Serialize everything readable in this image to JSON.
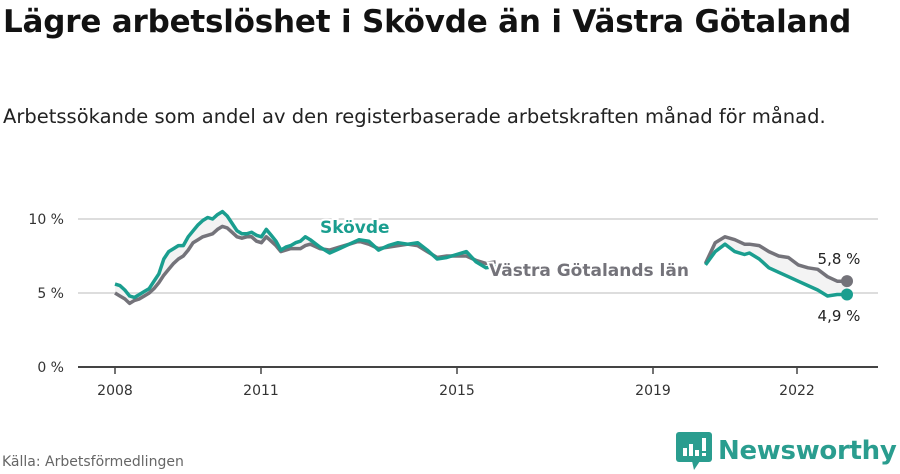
{
  "header": {
    "title": "Lägre arbetslöshet i Skövde än i Västra Götaland",
    "subtitle": "Arbetssökande som andel av den registerbaserade arbetskraften månad för månad."
  },
  "footer": {
    "source": "Källa: Arbetsförmedlingen",
    "brand": "Newsworthy"
  },
  "colors": {
    "skovde": "#1a9e8f",
    "vastra_gotaland": "#74737a",
    "grid": "#dddddd",
    "axis": "#444444"
  },
  "chart_data": {
    "type": "line",
    "title": "Lägre arbetslöshet i Skövde än i Västra Götaland",
    "subtitle": "Arbetssökande som andel av den registerbaserade arbetskraften månad för månad.",
    "xlabel": "",
    "ylabel": "",
    "ylim": [
      0,
      10.5
    ],
    "y_ticks": [
      "0 %",
      "5 %",
      "10 %"
    ],
    "x_ticks": [
      "2008",
      "2011",
      "2015",
      "2019",
      "2022"
    ],
    "grid": true,
    "legend": "inline labels",
    "series": [
      {
        "name": "Skövde",
        "color": "#1a9e8f",
        "end_label": "4,9 %",
        "points": [
          [
            2008.0,
            5.6
          ],
          [
            2008.1,
            5.5
          ],
          [
            2008.2,
            5.2
          ],
          [
            2008.3,
            4.8
          ],
          [
            2008.4,
            4.7
          ],
          [
            2008.5,
            4.9
          ],
          [
            2008.6,
            5.1
          ],
          [
            2008.7,
            5.3
          ],
          [
            2008.8,
            5.8
          ],
          [
            2008.9,
            6.3
          ],
          [
            2009.0,
            7.3
          ],
          [
            2009.1,
            7.8
          ],
          [
            2009.2,
            8.0
          ],
          [
            2009.3,
            8.2
          ],
          [
            2009.4,
            8.2
          ],
          [
            2009.5,
            8.8
          ],
          [
            2009.6,
            9.2
          ],
          [
            2009.7,
            9.6
          ],
          [
            2009.8,
            9.9
          ],
          [
            2009.9,
            10.1
          ],
          [
            2010.0,
            10.0
          ],
          [
            2010.1,
            10.3
          ],
          [
            2010.2,
            10.5
          ],
          [
            2010.3,
            10.2
          ],
          [
            2010.4,
            9.7
          ],
          [
            2010.5,
            9.2
          ],
          [
            2010.6,
            9.0
          ],
          [
            2010.7,
            9.0
          ],
          [
            2010.8,
            9.1
          ],
          [
            2010.9,
            8.9
          ],
          [
            2011.0,
            8.8
          ],
          [
            2011.1,
            9.3
          ],
          [
            2011.2,
            8.9
          ],
          [
            2011.3,
            8.5
          ],
          [
            2011.4,
            7.9
          ],
          [
            2011.5,
            8.1
          ],
          [
            2011.6,
            8.2
          ],
          [
            2011.7,
            8.4
          ],
          [
            2011.8,
            8.5
          ],
          [
            2011.9,
            8.8
          ],
          [
            2012.0,
            8.6
          ],
          [
            2012.2,
            8.1
          ],
          [
            2012.4,
            7.7
          ],
          [
            2012.6,
            8.0
          ],
          [
            2012.8,
            8.3
          ],
          [
            2013.0,
            8.6
          ],
          [
            2013.2,
            8.5
          ],
          [
            2013.4,
            7.9
          ],
          [
            2013.6,
            8.2
          ],
          [
            2013.8,
            8.4
          ],
          [
            2014.0,
            8.3
          ],
          [
            2014.2,
            8.4
          ],
          [
            2014.4,
            7.9
          ],
          [
            2014.6,
            7.3
          ],
          [
            2014.8,
            7.4
          ],
          [
            2015.0,
            7.6
          ],
          [
            2015.2,
            7.8
          ],
          [
            2015.4,
            7.1
          ],
          [
            2015.6,
            6.7
          ],
          [
            2015.8,
            6.8
          ],
          [
            2020.1,
            6.9
          ],
          [
            2020.3,
            7.8
          ],
          [
            2020.5,
            8.3
          ],
          [
            2020.7,
            7.8
          ],
          [
            2020.9,
            7.6
          ],
          [
            2021.0,
            7.7
          ],
          [
            2021.2,
            7.3
          ],
          [
            2021.4,
            6.7
          ],
          [
            2021.6,
            6.4
          ],
          [
            2021.8,
            6.1
          ],
          [
            2022.0,
            5.8
          ],
          [
            2022.2,
            5.5
          ],
          [
            2022.4,
            5.2
          ],
          [
            2022.6,
            4.8
          ],
          [
            2022.8,
            4.9
          ],
          [
            2023.0,
            4.9
          ]
        ]
      },
      {
        "name": "Västra Götalands län",
        "color": "#74737a",
        "end_label": "5,8 %",
        "points": [
          [
            2008.0,
            5.0
          ],
          [
            2008.1,
            4.8
          ],
          [
            2008.2,
            4.6
          ],
          [
            2008.3,
            4.3
          ],
          [
            2008.4,
            4.5
          ],
          [
            2008.5,
            4.6
          ],
          [
            2008.6,
            4.8
          ],
          [
            2008.7,
            5.0
          ],
          [
            2008.8,
            5.3
          ],
          [
            2008.9,
            5.7
          ],
          [
            2009.0,
            6.2
          ],
          [
            2009.1,
            6.6
          ],
          [
            2009.2,
            7.0
          ],
          [
            2009.3,
            7.3
          ],
          [
            2009.4,
            7.5
          ],
          [
            2009.5,
            7.9
          ],
          [
            2009.6,
            8.4
          ],
          [
            2009.7,
            8.6
          ],
          [
            2009.8,
            8.8
          ],
          [
            2009.9,
            8.9
          ],
          [
            2010.0,
            9.0
          ],
          [
            2010.1,
            9.3
          ],
          [
            2010.2,
            9.5
          ],
          [
            2010.3,
            9.4
          ],
          [
            2010.4,
            9.1
          ],
          [
            2010.5,
            8.8
          ],
          [
            2010.6,
            8.7
          ],
          [
            2010.7,
            8.8
          ],
          [
            2010.8,
            8.8
          ],
          [
            2010.9,
            8.5
          ],
          [
            2011.0,
            8.4
          ],
          [
            2011.1,
            8.8
          ],
          [
            2011.2,
            8.5
          ],
          [
            2011.3,
            8.2
          ],
          [
            2011.4,
            7.8
          ],
          [
            2011.5,
            7.9
          ],
          [
            2011.6,
            8.0
          ],
          [
            2011.7,
            8.0
          ],
          [
            2011.8,
            8.0
          ],
          [
            2011.9,
            8.2
          ],
          [
            2012.0,
            8.3
          ],
          [
            2012.2,
            8.0
          ],
          [
            2012.4,
            7.9
          ],
          [
            2012.6,
            8.1
          ],
          [
            2012.8,
            8.3
          ],
          [
            2013.0,
            8.5
          ],
          [
            2013.2,
            8.3
          ],
          [
            2013.4,
            8.0
          ],
          [
            2013.6,
            8.1
          ],
          [
            2013.8,
            8.2
          ],
          [
            2014.0,
            8.3
          ],
          [
            2014.2,
            8.2
          ],
          [
            2014.4,
            7.8
          ],
          [
            2014.6,
            7.4
          ],
          [
            2014.8,
            7.5
          ],
          [
            2015.0,
            7.5
          ],
          [
            2015.2,
            7.5
          ],
          [
            2015.4,
            7.2
          ],
          [
            2015.6,
            7.0
          ],
          [
            2015.8,
            7.1
          ],
          [
            2020.1,
            7.0
          ],
          [
            2020.3,
            8.4
          ],
          [
            2020.5,
            8.8
          ],
          [
            2020.7,
            8.6
          ],
          [
            2020.9,
            8.3
          ],
          [
            2021.0,
            8.3
          ],
          [
            2021.2,
            8.2
          ],
          [
            2021.4,
            7.8
          ],
          [
            2021.6,
            7.5
          ],
          [
            2021.8,
            7.4
          ],
          [
            2022.0,
            6.9
          ],
          [
            2022.2,
            6.7
          ],
          [
            2022.4,
            6.6
          ],
          [
            2022.6,
            6.1
          ],
          [
            2022.8,
            5.8
          ],
          [
            2023.0,
            5.8
          ]
        ]
      }
    ],
    "annotations": [
      {
        "text": "Skövde",
        "series": "Skövde"
      },
      {
        "text": "Västra Götalands län",
        "series": "Västra Götalands län"
      },
      {
        "text": "5,8 %",
        "series": "Västra Götalands län",
        "position": "end"
      },
      {
        "text": "4,9 %",
        "series": "Skövde",
        "position": "end"
      }
    ]
  }
}
